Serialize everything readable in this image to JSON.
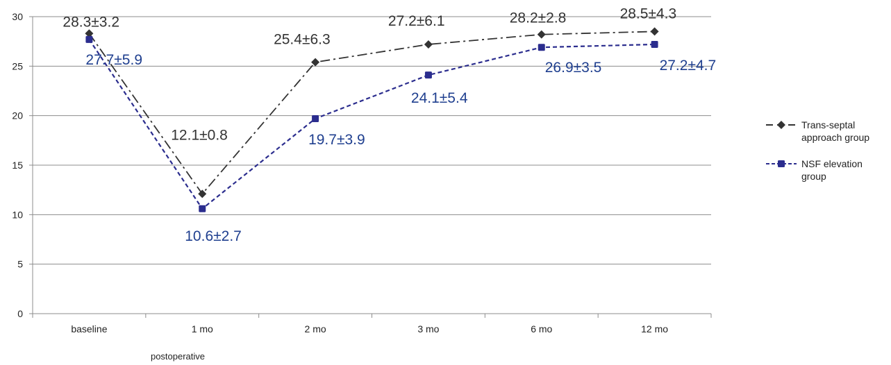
{
  "chart_data": {
    "type": "line",
    "categories": [
      "baseline",
      "1 mo",
      "2 mo",
      "3 mo",
      "6 mo",
      "12 mo"
    ],
    "xlabel": "postoperative",
    "ylabel": "",
    "ylim": [
      0,
      30
    ],
    "yticks": [
      "0",
      "5",
      "10",
      "15",
      "20",
      "25",
      "30"
    ],
    "grid": true,
    "legend_position": "right",
    "series": [
      {
        "name": "Trans-septal approach group",
        "legend_lines": [
          "Trans-septal",
          "approach group"
        ],
        "values": [
          28.3,
          12.1,
          25.4,
          27.2,
          28.2,
          28.5
        ],
        "labels": [
          "28.3±3.2",
          "12.1±0.8",
          "25.4±6.3",
          "27.2±6.1",
          "28.2±2.8",
          "28.5±4.3"
        ],
        "color": "#333333",
        "label_color": "#333333",
        "line_style": "dash-dot",
        "marker": "diamond"
      },
      {
        "name": "NSF elevation group",
        "legend_lines": [
          "NSF elevation",
          "group"
        ],
        "values": [
          27.7,
          10.6,
          19.7,
          24.1,
          26.9,
          27.2
        ],
        "labels": [
          "27.7±5.9",
          "10.6±2.7",
          "19.7±3.9",
          "24.1±5.4",
          "26.9±3.5",
          "27.2±4.7"
        ],
        "color": "#2b2d8e",
        "label_color": "#1f3f8f",
        "line_style": "dashed",
        "marker": "square"
      }
    ]
  }
}
